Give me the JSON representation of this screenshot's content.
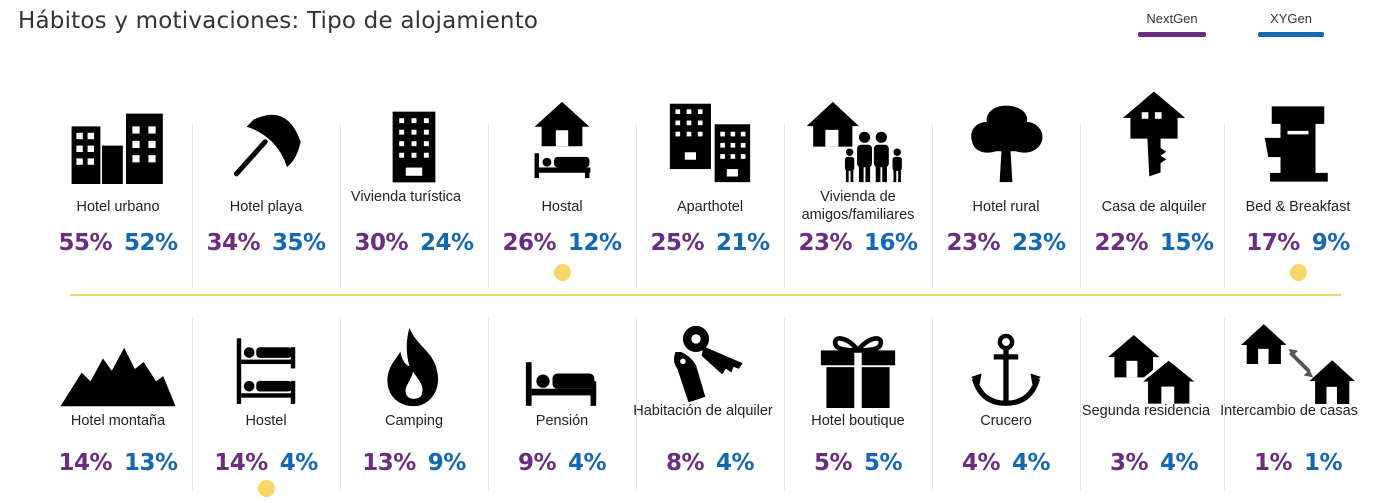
{
  "title": "Hábitos y motivaciones: Tipo de alojamiento",
  "legend": [
    {
      "name": "NextGen",
      "color": "#6b2d7f"
    },
    {
      "name": "XYGen",
      "color": "#1468b3"
    }
  ],
  "colors": {
    "nextgen": "#6b2d7f",
    "xygen": "#1468b3",
    "highlight": "#f7d768"
  },
  "chart_data": {
    "type": "table",
    "title": "Hábitos y motivaciones: Tipo de alojamiento",
    "series": [
      {
        "name": "NextGen",
        "values": [
          55,
          34,
          30,
          26,
          25,
          23,
          23,
          22,
          17,
          14,
          14,
          13,
          9,
          8,
          5,
          4,
          3,
          1
        ]
      },
      {
        "name": "XYGen",
        "values": [
          52,
          35,
          24,
          12,
          21,
          16,
          23,
          15,
          9,
          13,
          4,
          9,
          4,
          4,
          5,
          4,
          4,
          1
        ]
      }
    ],
    "categories": [
      "Hotel urbano",
      "Hotel playa",
      "Vivienda turística",
      "Hostal",
      "Aparthotel",
      "Vivienda de amigos/familiares",
      "Hotel rural",
      "Casa de alquiler",
      "Bed & Breakfast",
      "Hotel montaña",
      "Hostel",
      "Camping",
      "Pensión",
      "Habitación de alquiler",
      "Hotel boutique",
      "Crucero",
      "Segunda residencia",
      "Intercambio de casas"
    ]
  },
  "items": [
    {
      "label": "Hotel urbano",
      "ng": "55%",
      "xy": "52%",
      "icon": "city-buildings-icon",
      "highlight": false
    },
    {
      "label": "Hotel playa",
      "ng": "34%",
      "xy": "35%",
      "icon": "beach-umbrella-icon",
      "highlight": false
    },
    {
      "label": "Vivienda turística",
      "ng": "30%",
      "xy": "24%",
      "icon": "apartment-building-icon",
      "highlight": false
    },
    {
      "label": "Hostal",
      "ng": "26%",
      "xy": "12%",
      "icon": "house-bed-icon",
      "highlight": true
    },
    {
      "label": "Aparthotel",
      "ng": "25%",
      "xy": "21%",
      "icon": "two-buildings-icon",
      "highlight": false
    },
    {
      "label": "Vivienda de amigos/familiares",
      "ng": "23%",
      "xy": "16%",
      "icon": "house-family-icon",
      "highlight": false
    },
    {
      "label": "Hotel rural",
      "ng": "23%",
      "xy": "23%",
      "icon": "tree-icon",
      "highlight": false
    },
    {
      "label": "Casa de alquiler",
      "ng": "22%",
      "xy": "15%",
      "icon": "house-key-icon",
      "highlight": false
    },
    {
      "label": "Bed & Breakfast",
      "ng": "17%",
      "xy": "9%",
      "icon": "coffee-maker-icon",
      "highlight": true
    },
    {
      "label": "Hotel montaña",
      "ng": "14%",
      "xy": "13%",
      "icon": "mountains-icon",
      "highlight": false
    },
    {
      "label": "Hostel",
      "ng": "14%",
      "xy": "4%",
      "icon": "bunk-beds-icon",
      "highlight": true
    },
    {
      "label": "Camping",
      "ng": "13%",
      "xy": "9%",
      "icon": "flame-icon",
      "highlight": false
    },
    {
      "label": "Pensión",
      "ng": "9%",
      "xy": "4%",
      "icon": "bed-icon",
      "highlight": false
    },
    {
      "label": "Habitación de alquiler",
      "ng": "8%",
      "xy": "4%",
      "icon": "key-tag-icon",
      "highlight": false
    },
    {
      "label": "Hotel boutique",
      "ng": "5%",
      "xy": "5%",
      "icon": "gift-box-icon",
      "highlight": false
    },
    {
      "label": "Crucero",
      "ng": "4%",
      "xy": "4%",
      "icon": "anchor-icon",
      "highlight": false
    },
    {
      "label": "Segunda residencia",
      "ng": "3%",
      "xy": "4%",
      "icon": "two-houses-icon",
      "highlight": false
    },
    {
      "label": "Intercambio de casas",
      "ng": "1%",
      "xy": "1%",
      "icon": "house-exchange-icon",
      "highlight": false
    }
  ]
}
